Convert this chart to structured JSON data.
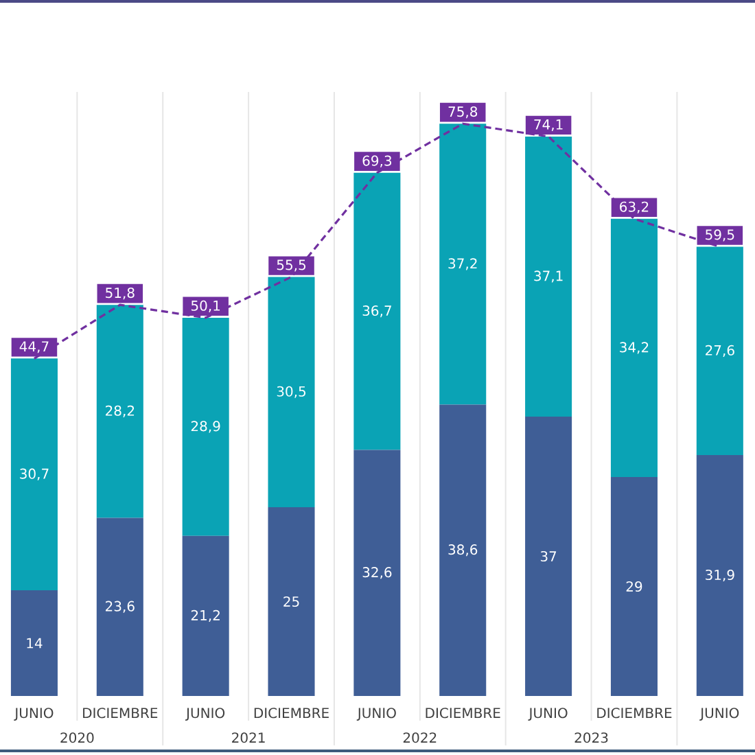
{
  "chart_data": {
    "type": "bar",
    "stacked": true,
    "categories": [
      "JUNIO",
      "DICIEMBRE",
      "JUNIO",
      "DICIEMBRE",
      "JUNIO",
      "DICIEMBRE",
      "JUNIO",
      "DICIEMBRE",
      "JUNIO"
    ],
    "series": [
      {
        "color": "#3f5e96",
        "values": [
          14,
          23.6,
          21.2,
          25,
          32.6,
          38.6,
          37,
          29,
          31.9
        ],
        "value_labels": [
          "14",
          "23,6",
          "21,2",
          "25",
          "32,6",
          "38,6",
          "37",
          "29",
          "31,9"
        ]
      },
      {
        "color": "#0aa3b5",
        "values": [
          30.7,
          28.2,
          28.9,
          30.5,
          36.7,
          37.2,
          37.1,
          34.2,
          27.6
        ],
        "value_labels": [
          "30,7",
          "28,2",
          "28,9",
          "30,5",
          "36,7",
          "37,2",
          "37,1",
          "34,2",
          "27,6"
        ]
      },
      {
        "type": "line",
        "color": "#7030a0",
        "line_style": "dashed",
        "values": [
          44.7,
          51.8,
          50.1,
          55.5,
          69.3,
          75.8,
          74.1,
          63.2,
          59.5
        ],
        "value_labels": [
          "44,7",
          "51,8",
          "50,1",
          "55,5",
          "69,3",
          "75,8",
          "74,1",
          "63,2",
          "59,5"
        ]
      }
    ],
    "ylim": [
      0,
      80
    ],
    "tick_labels": "x",
    "grid": "x",
    "annotations": [
      "2020",
      "2021",
      "2022",
      "2023"
    ]
  }
}
